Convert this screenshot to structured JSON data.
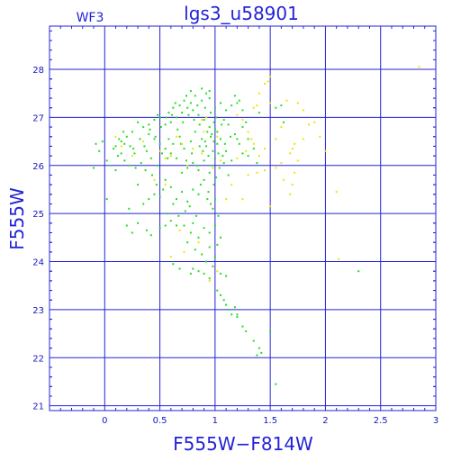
{
  "chart_data": {
    "type": "scatter",
    "title": "lgs3_u58901",
    "annotation": "WF3",
    "xlabel": "F555W−F814W",
    "ylabel": "F555W",
    "xlim": [
      -0.5,
      3.0
    ],
    "ylim": [
      28.9,
      20.9
    ],
    "y_inverted": true,
    "grid": true,
    "x_ticks": [
      "0",
      "0.5",
      "1",
      "1.5",
      "2",
      "2.5",
      "3"
    ],
    "x_tick_values": [
      0,
      0.5,
      1,
      1.5,
      2,
      2.5,
      3
    ],
    "y_ticks": [
      "21",
      "22",
      "23",
      "24",
      "25",
      "26",
      "27",
      "28"
    ],
    "y_tick_values": [
      21,
      22,
      23,
      24,
      25,
      26,
      27,
      28
    ],
    "colors": {
      "axes": "#2323d8",
      "grid": "#2323d8",
      "seriesA": "#22dd22",
      "seriesB": "#f0e400"
    },
    "series": [
      {
        "color": "#22dd22",
        "points": [
          [
            1.55,
            21.45
          ],
          [
            1.38,
            22.05
          ],
          [
            1.42,
            22.1
          ],
          [
            1.4,
            22.2
          ],
          [
            1.35,
            22.35
          ],
          [
            1.5,
            22.55
          ],
          [
            1.28,
            22.55
          ],
          [
            1.25,
            22.65
          ],
          [
            1.2,
            22.85
          ],
          [
            1.15,
            22.9
          ],
          [
            1.12,
            23.0
          ],
          [
            1.1,
            23.1
          ],
          [
            1.08,
            23.2
          ],
          [
            1.05,
            23.3
          ],
          [
            1.02,
            23.4
          ],
          [
            1.2,
            22.9
          ],
          [
            1.18,
            23.05
          ],
          [
            2.3,
            23.8
          ],
          [
            0.95,
            23.65
          ],
          [
            0.9,
            23.75
          ],
          [
            0.85,
            23.8
          ],
          [
            0.8,
            23.85
          ],
          [
            0.78,
            23.75
          ],
          [
            0.68,
            23.85
          ],
          [
            1.05,
            23.75
          ],
          [
            1.1,
            23.7
          ],
          [
            0.62,
            23.95
          ],
          [
            0.98,
            23.9
          ],
          [
            0.92,
            24.0
          ],
          [
            1.0,
            24.1
          ],
          [
            0.88,
            24.15
          ],
          [
            0.82,
            24.25
          ],
          [
            0.95,
            24.3
          ],
          [
            1.02,
            24.35
          ],
          [
            0.75,
            24.4
          ],
          [
            0.85,
            24.5
          ],
          [
            0.78,
            24.6
          ],
          [
            0.9,
            24.7
          ],
          [
            0.72,
            24.75
          ],
          [
            0.8,
            24.8
          ],
          [
            0.65,
            24.75
          ],
          [
            0.6,
            24.85
          ],
          [
            0.95,
            24.6
          ],
          [
            1.0,
            24.75
          ],
          [
            1.05,
            24.5
          ],
          [
            1.03,
            24.95
          ],
          [
            0.98,
            25.1
          ],
          [
            0.96,
            25.2
          ],
          [
            1.0,
            25.3
          ],
          [
            0.94,
            25.45
          ],
          [
            0.99,
            25.6
          ],
          [
            1.01,
            25.75
          ],
          [
            0.95,
            25.85
          ],
          [
            0.97,
            26.0
          ],
          [
            1.0,
            26.15
          ],
          [
            0.98,
            26.3
          ],
          [
            1.02,
            26.45
          ],
          [
            0.96,
            26.6
          ],
          [
            1.0,
            26.75
          ],
          [
            0.99,
            26.9
          ],
          [
            0.2,
            24.75
          ],
          [
            0.25,
            24.6
          ],
          [
            0.3,
            24.8
          ],
          [
            0.38,
            24.65
          ],
          [
            0.42,
            24.55
          ],
          [
            0.5,
            24.7
          ],
          [
            0.55,
            24.75
          ],
          [
            0.22,
            25.1
          ],
          [
            0.35,
            25.2
          ],
          [
            0.4,
            25.3
          ],
          [
            0.45,
            25.4
          ],
          [
            0.5,
            25.35
          ],
          [
            0.3,
            25.6
          ],
          [
            0.55,
            25.7
          ],
          [
            0.6,
            25.55
          ],
          [
            0.65,
            25.3
          ],
          [
            0.7,
            25.45
          ],
          [
            0.75,
            25.25
          ],
          [
            0.8,
            25.5
          ],
          [
            0.85,
            25.4
          ],
          [
            0.9,
            25.7
          ],
          [
            0.7,
            25.85
          ],
          [
            0.75,
            25.95
          ],
          [
            0.8,
            26.05
          ],
          [
            0.85,
            25.9
          ],
          [
            0.9,
            26.1
          ],
          [
            0.65,
            26.15
          ],
          [
            0.6,
            26.25
          ],
          [
            0.55,
            26.35
          ],
          [
            0.5,
            26.45
          ],
          [
            0.45,
            26.55
          ],
          [
            0.4,
            26.65
          ],
          [
            0.35,
            26.8
          ],
          [
            0.3,
            26.9
          ],
          [
            0.25,
            26.7
          ],
          [
            0.2,
            26.6
          ],
          [
            0.15,
            26.5
          ],
          [
            0.1,
            26.4
          ],
          [
            0.12,
            26.2
          ],
          [
            0.18,
            26.1
          ],
          [
            0.22,
            26.0
          ],
          [
            0.28,
            25.95
          ],
          [
            0.33,
            26.05
          ],
          [
            0.38,
            26.3
          ],
          [
            0.42,
            26.15
          ],
          [
            0.48,
            26.0
          ],
          [
            0.52,
            26.25
          ],
          [
            0.58,
            26.55
          ],
          [
            0.62,
            26.45
          ],
          [
            0.68,
            26.6
          ],
          [
            0.72,
            26.35
          ],
          [
            0.78,
            26.5
          ],
          [
            0.82,
            26.7
          ],
          [
            0.88,
            26.55
          ],
          [
            0.92,
            26.4
          ],
          [
            0.95,
            26.8
          ],
          [
            0.9,
            26.95
          ],
          [
            0.85,
            27.05
          ],
          [
            0.8,
            27.15
          ],
          [
            0.75,
            27.2
          ],
          [
            0.7,
            27.1
          ],
          [
            0.65,
            27.0
          ],
          [
            0.6,
            26.9
          ],
          [
            0.55,
            26.85
          ],
          [
            0.5,
            27.0
          ],
          [
            0.45,
            26.95
          ],
          [
            0.4,
            26.85
          ],
          [
            0.48,
            27.05
          ],
          [
            0.58,
            27.1
          ],
          [
            0.68,
            27.25
          ],
          [
            0.78,
            27.3
          ],
          [
            0.88,
            27.35
          ],
          [
            0.95,
            27.4
          ],
          [
            1.0,
            27.2
          ],
          [
            1.05,
            27.3
          ],
          [
            1.1,
            27.15
          ],
          [
            1.15,
            27.25
          ],
          [
            1.2,
            27.3
          ],
          [
            0.82,
            27.45
          ],
          [
            0.92,
            27.5
          ],
          [
            0.72,
            27.35
          ],
          [
            0.62,
            27.2
          ],
          [
            1.08,
            26.95
          ],
          [
            1.12,
            26.85
          ],
          [
            1.18,
            26.65
          ],
          [
            1.22,
            26.45
          ],
          [
            1.25,
            26.25
          ],
          [
            1.15,
            26.1
          ],
          [
            1.1,
            26.3
          ],
          [
            1.05,
            26.55
          ],
          [
            1.08,
            26.05
          ],
          [
            1.12,
            25.8
          ],
          [
            1.2,
            26.55
          ],
          [
            1.25,
            26.8
          ],
          [
            1.3,
            26.55
          ],
          [
            1.35,
            26.35
          ],
          [
            1.38,
            26.05
          ],
          [
            1.3,
            26.2
          ],
          [
            1.28,
            26.9
          ],
          [
            1.22,
            27.35
          ],
          [
            1.18,
            27.45
          ],
          [
            1.25,
            27.15
          ],
          [
            1.4,
            27.1
          ],
          [
            1.55,
            27.2
          ],
          [
            1.6,
            27.25
          ],
          [
            1.62,
            26.9
          ],
          [
            0.95,
            27.55
          ],
          [
            0.88,
            27.6
          ],
          [
            0.78,
            27.55
          ],
          [
            -0.1,
            25.95
          ],
          [
            -0.05,
            26.3
          ],
          [
            -0.08,
            26.45
          ],
          [
            -0.02,
            26.5
          ],
          [
            0.02,
            26.1
          ],
          [
            0.05,
            26.0
          ],
          [
            0.08,
            26.35
          ],
          [
            0.02,
            25.3
          ],
          [
            0.1,
            25.9
          ],
          [
            0.15,
            26.25
          ],
          [
            0.18,
            26.45
          ],
          [
            0.26,
            26.35
          ],
          [
            0.32,
            26.55
          ],
          [
            0.36,
            26.4
          ],
          [
            0.41,
            26.75
          ],
          [
            0.46,
            26.6
          ],
          [
            0.51,
            26.8
          ],
          [
            0.56,
            27.0
          ],
          [
            0.61,
            27.05
          ],
          [
            0.66,
            26.75
          ],
          [
            0.71,
            26.9
          ],
          [
            0.76,
            27.05
          ],
          [
            0.81,
            26.95
          ],
          [
            0.86,
            26.85
          ],
          [
            0.91,
            27.2
          ],
          [
            0.96,
            27.1
          ],
          [
            1.01,
            27.0
          ],
          [
            0.74,
            27.45
          ],
          [
            0.84,
            27.25
          ],
          [
            0.64,
            27.3
          ],
          [
            0.69,
            26.45
          ],
          [
            0.79,
            26.25
          ],
          [
            0.89,
            26.3
          ],
          [
            0.94,
            26.2
          ],
          [
            0.84,
            26.0
          ],
          [
            0.74,
            26.1
          ],
          [
            0.87,
            25.6
          ],
          [
            0.93,
            25.3
          ],
          [
            0.77,
            25.15
          ],
          [
            0.83,
            24.95
          ],
          [
            0.73,
            25.05
          ],
          [
            0.67,
            24.95
          ],
          [
            0.57,
            25.0
          ],
          [
            0.62,
            25.2
          ],
          [
            0.53,
            25.5
          ],
          [
            0.47,
            25.6
          ],
          [
            0.43,
            25.8
          ],
          [
            0.37,
            25.9
          ],
          [
            0.27,
            26.25
          ],
          [
            0.23,
            26.4
          ],
          [
            0.13,
            26.55
          ],
          [
            0.17,
            26.7
          ],
          [
            0.57,
            26.15
          ],
          [
            1.04,
            25.95
          ],
          [
            1.07,
            26.2
          ],
          [
            1.09,
            26.45
          ],
          [
            1.14,
            26.6
          ],
          [
            1.02,
            26.7
          ],
          [
            1.06,
            26.85
          ],
          [
            0.97,
            26.65
          ],
          [
            0.93,
            26.7
          ],
          [
            0.99,
            26.5
          ],
          [
            1.03,
            26.25
          ],
          [
            0.91,
            26.5
          ],
          [
            0.86,
            26.4
          ]
        ]
      },
      {
        "color": "#f0e400",
        "points": [
          [
            0.95,
            23.6
          ],
          [
            1.02,
            23.8
          ],
          [
            0.72,
            24.2
          ],
          [
            0.6,
            24.1
          ],
          [
            0.85,
            24.4
          ],
          [
            0.45,
            25.7
          ],
          [
            0.55,
            25.6
          ],
          [
            0.5,
            26.3
          ],
          [
            0.55,
            26.15
          ],
          [
            0.6,
            26.2
          ],
          [
            0.7,
            26.45
          ],
          [
            0.8,
            26.35
          ],
          [
            0.9,
            26.7
          ],
          [
            0.65,
            26.6
          ],
          [
            0.75,
            26.0
          ],
          [
            0.88,
            26.25
          ],
          [
            1.15,
            25.6
          ],
          [
            1.25,
            25.3
          ],
          [
            1.3,
            25.8
          ],
          [
            1.38,
            25.85
          ],
          [
            1.45,
            25.9
          ],
          [
            1.5,
            25.15
          ],
          [
            1.55,
            25.95
          ],
          [
            1.62,
            25.7
          ],
          [
            1.68,
            25.4
          ],
          [
            1.7,
            25.6
          ],
          [
            1.72,
            25.85
          ],
          [
            1.75,
            26.1
          ],
          [
            1.68,
            26.25
          ],
          [
            1.72,
            26.45
          ],
          [
            1.8,
            26.55
          ],
          [
            1.85,
            26.85
          ],
          [
            1.9,
            26.9
          ],
          [
            1.95,
            26.6
          ],
          [
            2.0,
            26.3
          ],
          [
            2.1,
            25.45
          ],
          [
            2.12,
            24.05
          ],
          [
            1.6,
            26.8
          ],
          [
            1.55,
            26.55
          ],
          [
            1.45,
            26.35
          ],
          [
            1.4,
            26.2
          ],
          [
            1.35,
            26.45
          ],
          [
            1.3,
            26.7
          ],
          [
            1.25,
            26.95
          ],
          [
            1.2,
            27.05
          ],
          [
            1.35,
            27.2
          ],
          [
            1.4,
            27.5
          ],
          [
            1.45,
            27.7
          ],
          [
            1.5,
            27.85
          ],
          [
            1.48,
            27.75
          ],
          [
            1.75,
            27.3
          ],
          [
            1.8,
            27.15
          ],
          [
            1.65,
            27.35
          ],
          [
            0.15,
            26.4
          ],
          [
            0.1,
            26.6
          ],
          [
            0.25,
            26.2
          ],
          [
            0.35,
            26.5
          ],
          [
            1.1,
            25.3
          ],
          [
            1.2,
            26.15
          ],
          [
            1.28,
            26.3
          ],
          [
            1.33,
            26.55
          ],
          [
            1.05,
            26.1
          ],
          [
            0.98,
            25.95
          ],
          [
            1.02,
            26.6
          ],
          [
            0.92,
            27.0
          ],
          [
            0.88,
            26.95
          ],
          [
            2.85,
            28.05
          ],
          [
            1.6,
            26.05
          ],
          [
            1.7,
            26.35
          ],
          [
            1.5,
            27.3
          ],
          [
            1.38,
            27.25
          ],
          [
            0.68,
            24.65
          ]
        ]
      }
    ]
  }
}
